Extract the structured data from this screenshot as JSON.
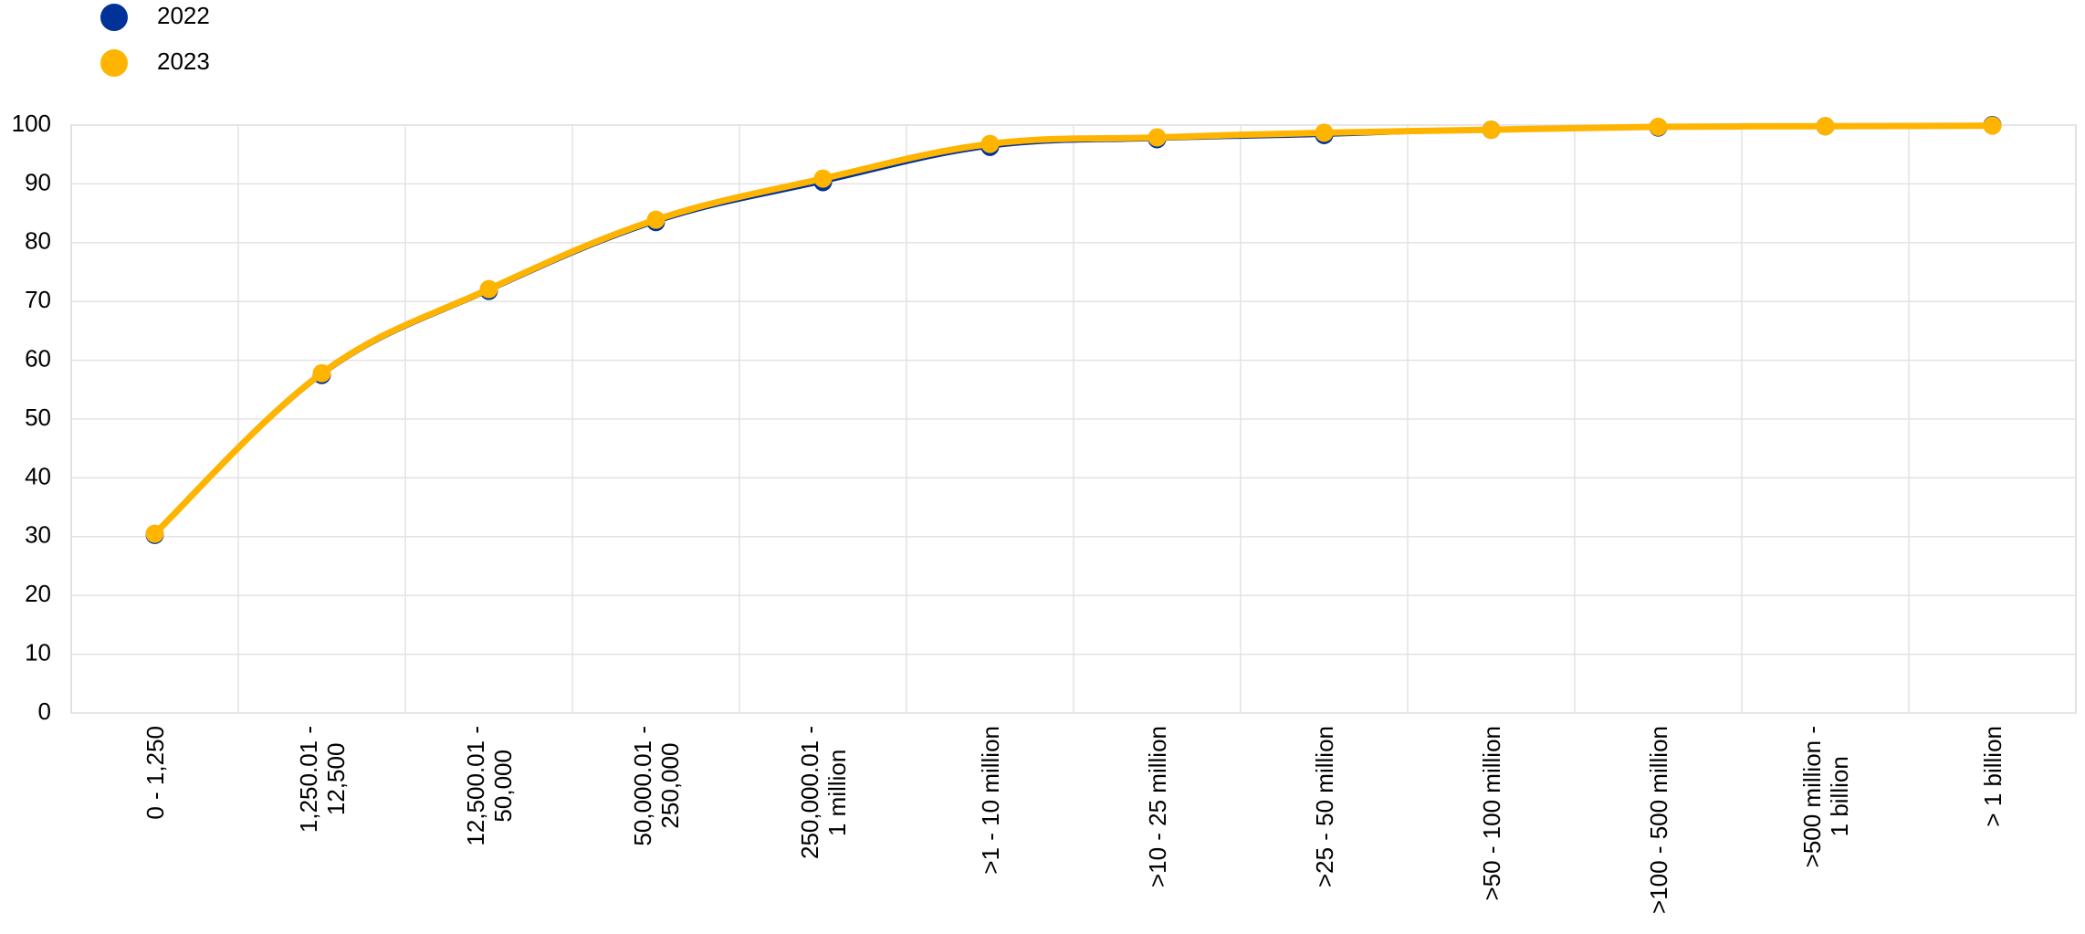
{
  "chart_data": {
    "type": "line",
    "categories": [
      "0 - 1,250",
      "1,250.01 -\n12,500",
      "12,500.01 -\n50,000",
      "50,000.01 -\n250,000",
      "250,000.01 -\n1 million",
      ">1 - 10 million",
      ">10 - 25 million",
      ">25 - 50 million",
      ">50 - 100 million",
      ">100 - 500 million",
      ">500 million -\n1 billion",
      "> 1 billion"
    ],
    "series": [
      {
        "name": "2022",
        "color": "#003299",
        "values": [
          30.3,
          57.5,
          71.8,
          83.5,
          90.3,
          96.3,
          97.6,
          98.3,
          99.2,
          99.6,
          99.8,
          100
        ]
      },
      {
        "name": "2023",
        "color": "#FFB400",
        "values": [
          30.5,
          57.8,
          72.1,
          83.9,
          90.9,
          96.8,
          97.9,
          98.7,
          99.2,
          99.7,
          99.8,
          99.9
        ]
      }
    ],
    "ylim": [
      0,
      100
    ],
    "yticks": [
      0,
      10,
      20,
      30,
      40,
      50,
      60,
      70,
      80,
      90,
      100
    ],
    "grid": true,
    "legend": "top-left"
  }
}
